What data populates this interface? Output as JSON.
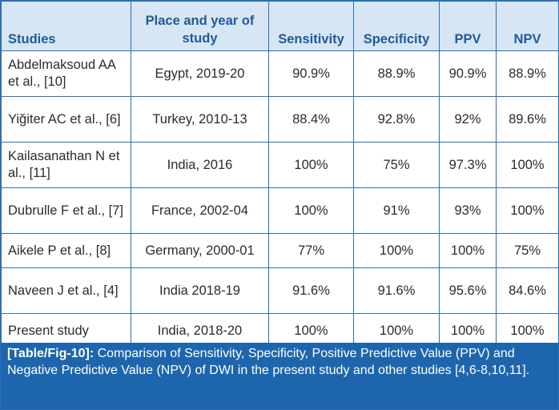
{
  "table": {
    "headers": [
      "Studies",
      "Place and year of study",
      "Sensitivity",
      "Specificity",
      "PPV",
      "NPV"
    ],
    "rows": [
      {
        "study": "Abdelmaksoud AA et al., [10]",
        "place": "Egypt, 2019-20",
        "sensitivity": "90.9%",
        "specificity": "88.9%",
        "ppv": "90.9%",
        "npv": "88.9%"
      },
      {
        "study": "Yiğiter AC et al., [6]",
        "place": "Turkey, 2010-13",
        "sensitivity": "88.4%",
        "specificity": "92.8%",
        "ppv": "92%",
        "npv": "89.6%"
      },
      {
        "study": "Kailasanathan N et al., [11]",
        "place": "India, 2016",
        "sensitivity": "100%",
        "specificity": "75%",
        "ppv": "97.3%",
        "npv": "100%"
      },
      {
        "study": "Dubrulle F et al., [7]",
        "place": "France, 2002-04",
        "sensitivity": "100%",
        "specificity": "91%",
        "ppv": "93%",
        "npv": "100%"
      },
      {
        "study": "Aikele P et al., [8]",
        "place": "Germany, 2000-01",
        "sensitivity": "77%",
        "specificity": "100%",
        "ppv": "100%",
        "npv": "75%"
      },
      {
        "study": "Naveen J et al., [4]",
        "place": "India 2018-19",
        "sensitivity": "91.6%",
        "specificity": "91.6%",
        "ppv": "95.6%",
        "npv": "84.6%"
      },
      {
        "study": "Present study",
        "place": "India, 2018-20",
        "sensitivity": "100%",
        "specificity": "100%",
        "ppv": "100%",
        "npv": "100%"
      }
    ]
  },
  "caption": {
    "ref": "[Table/Fig-10]:",
    "text": " Comparison of Sensitivity, Specificity, Positive Predictive Value (PPV) and Negative Predictive Value (NPV) of DWI in the present study and other studies [4,6-8,10,11]."
  }
}
